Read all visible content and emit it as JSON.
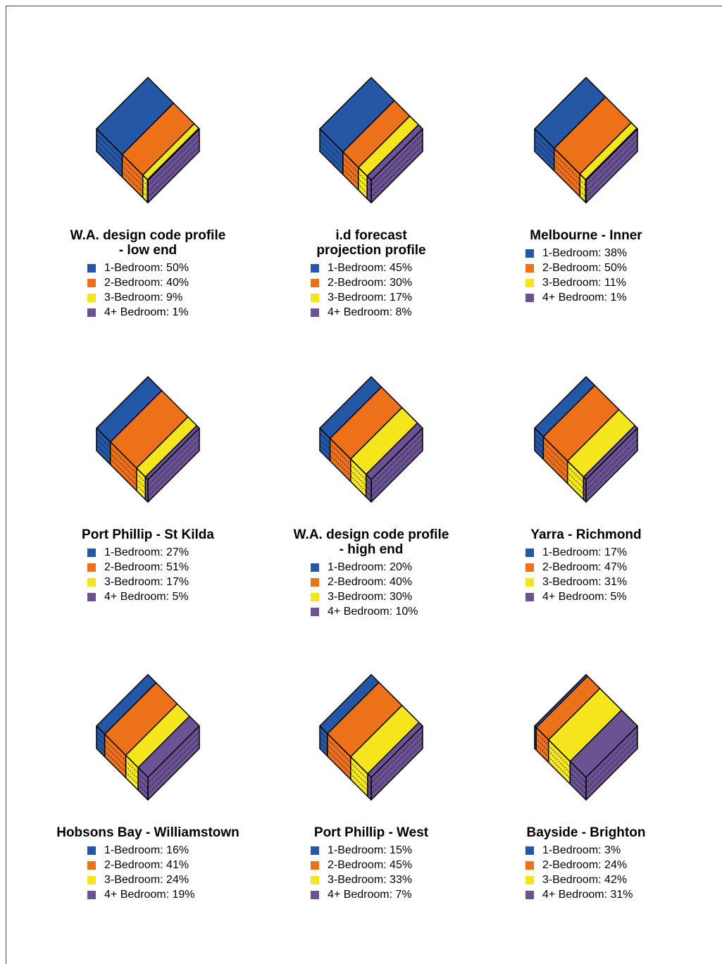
{
  "chart_data": [
    {
      "type": "isometric-block",
      "title": [
        "W.A. design code profile",
        "- low end"
      ],
      "values": [
        50,
        40,
        9,
        1
      ],
      "legend": [
        "1-Bedroom: 50%",
        "2-Bedroom: 40%",
        "3-Bedroom: 9%",
        "4+ Bedroom: 1%"
      ],
      "colors": [
        "#2457a6",
        "#ec7118",
        "#f4e51c",
        "#6a5293"
      ]
    },
    {
      "type": "isometric-block",
      "title": [
        "i.d forecast",
        "projection profile"
      ],
      "values": [
        45,
        30,
        17,
        8
      ],
      "legend": [
        "1-Bedroom: 45%",
        "2-Bedroom: 30%",
        "3-Bedroom: 17%",
        "4+ Bedroom: 8%"
      ],
      "colors": [
        "#2457a6",
        "#ec7118",
        "#f4e51c",
        "#6a5293"
      ]
    },
    {
      "type": "isometric-block",
      "title": [
        "Melbourne - Inner"
      ],
      "values": [
        38,
        50,
        11,
        1
      ],
      "legend": [
        "1-Bedroom: 38%",
        "2-Bedroom: 50%",
        "3-Bedroom: 11%",
        "4+ Bedroom: 1%"
      ],
      "colors": [
        "#2457a6",
        "#ec7118",
        "#f4e51c",
        "#6a5293"
      ]
    },
    {
      "type": "isometric-block",
      "title": [
        "Port Phillip - St Kilda"
      ],
      "values": [
        27,
        51,
        17,
        5
      ],
      "legend": [
        "1-Bedroom: 27%",
        "2-Bedroom: 51%",
        "3-Bedroom: 17%",
        "4+ Bedroom: 5%"
      ],
      "colors": [
        "#2457a6",
        "#ec7118",
        "#f4e51c",
        "#6a5293"
      ]
    },
    {
      "type": "isometric-block",
      "title": [
        "W.A. design code profile",
        "- high end"
      ],
      "values": [
        20,
        40,
        30,
        10
      ],
      "legend": [
        "1-Bedroom: 20%",
        "2-Bedroom: 40%",
        "3-Bedroom: 30%",
        "4+ Bedroom: 10%"
      ],
      "colors": [
        "#2457a6",
        "#ec7118",
        "#f4e51c",
        "#6a5293"
      ]
    },
    {
      "type": "isometric-block",
      "title": [
        "Yarra - Richmond"
      ],
      "values": [
        17,
        47,
        31,
        5
      ],
      "legend": [
        "1-Bedroom: 17%",
        "2-Bedroom: 47%",
        "3-Bedroom: 31%",
        "4+ Bedroom: 5%"
      ],
      "colors": [
        "#2457a6",
        "#ec7118",
        "#f4e51c",
        "#6a5293"
      ]
    },
    {
      "type": "isometric-block",
      "title": [
        "Hobsons Bay - Williamstown"
      ],
      "values": [
        16,
        41,
        24,
        19
      ],
      "legend": [
        "1-Bedroom: 16%",
        "2-Bedroom: 41%",
        "3-Bedroom: 24%",
        "4+ Bedroom: 19%"
      ],
      "colors": [
        "#2457a6",
        "#ec7118",
        "#f4e51c",
        "#6a5293"
      ]
    },
    {
      "type": "isometric-block",
      "title": [
        "Port Phillip - West"
      ],
      "values": [
        15,
        45,
        33,
        7
      ],
      "legend": [
        "1-Bedroom: 15%",
        "2-Bedroom: 45%",
        "3-Bedroom: 33%",
        "4+ Bedroom: 7%"
      ],
      "colors": [
        "#2457a6",
        "#ec7118",
        "#f4e51c",
        "#6a5293"
      ]
    },
    {
      "type": "isometric-block",
      "title": [
        "Bayside - Brighton"
      ],
      "values": [
        3,
        24,
        42,
        31
      ],
      "legend": [
        "1-Bedroom: 3%",
        "2-Bedroom: 24%",
        "3-Bedroom: 42%",
        "4+ Bedroom: 31%"
      ],
      "colors": [
        "#2457a6",
        "#ec7118",
        "#f4e51c",
        "#6a5293"
      ]
    }
  ]
}
